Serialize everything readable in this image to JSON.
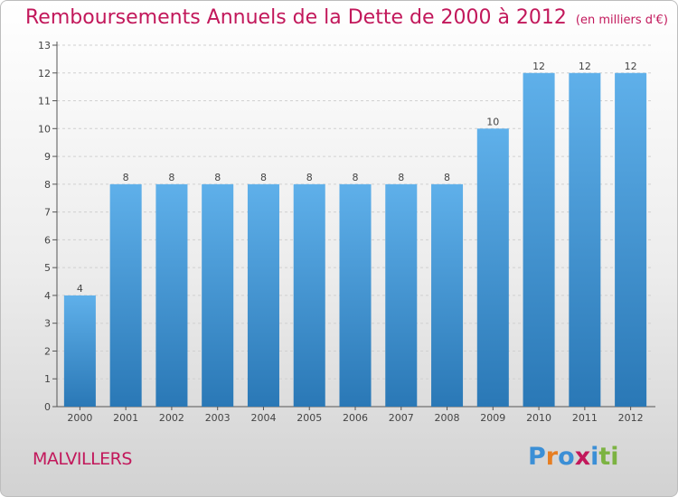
{
  "header": {
    "title": "Remboursements Annuels de la Dette de 2000 à 2012",
    "unit": "(en milliers d'€)"
  },
  "footer": {
    "place": "MALVILLERS",
    "logo_text": "Proxiti",
    "logo_letters": [
      "P",
      "r",
      "o",
      "x",
      "i",
      "t",
      "i"
    ],
    "logo_colors": [
      "#3b8fd6",
      "#e67e22",
      "#3b8fd6",
      "#c2185b",
      "#3b8fd6",
      "#7cb342",
      "#7cb342"
    ]
  },
  "colors": {
    "bar_top": "#5fb0ea",
    "bar_bottom": "#2a78b6",
    "accent": "#c2185b"
  },
  "chart_data": {
    "type": "bar",
    "categories": [
      "2000",
      "2001",
      "2002",
      "2003",
      "2004",
      "2005",
      "2006",
      "2007",
      "2008",
      "2009",
      "2010",
      "2011",
      "2012"
    ],
    "values": [
      4,
      8,
      8,
      8,
      8,
      8,
      8,
      8,
      8,
      10,
      12,
      12,
      12
    ],
    "value_labels": [
      "4",
      "8",
      "8",
      "8",
      "8",
      "8",
      "8",
      "8",
      "8",
      "10",
      "12",
      "12",
      "12"
    ],
    "title": "Remboursements Annuels de la Dette de 2000 à 2012",
    "xlabel": "",
    "ylabel": "",
    "ylim": [
      0,
      13
    ],
    "yticks": [
      0,
      1,
      2,
      3,
      4,
      5,
      6,
      7,
      8,
      9,
      10,
      11,
      12,
      13
    ],
    "ytick_labels": [
      "0",
      "1",
      "2",
      "3",
      "4",
      "5",
      "6",
      "7",
      "8",
      "9",
      "10",
      "11",
      "12",
      "13"
    ],
    "grid": true
  }
}
